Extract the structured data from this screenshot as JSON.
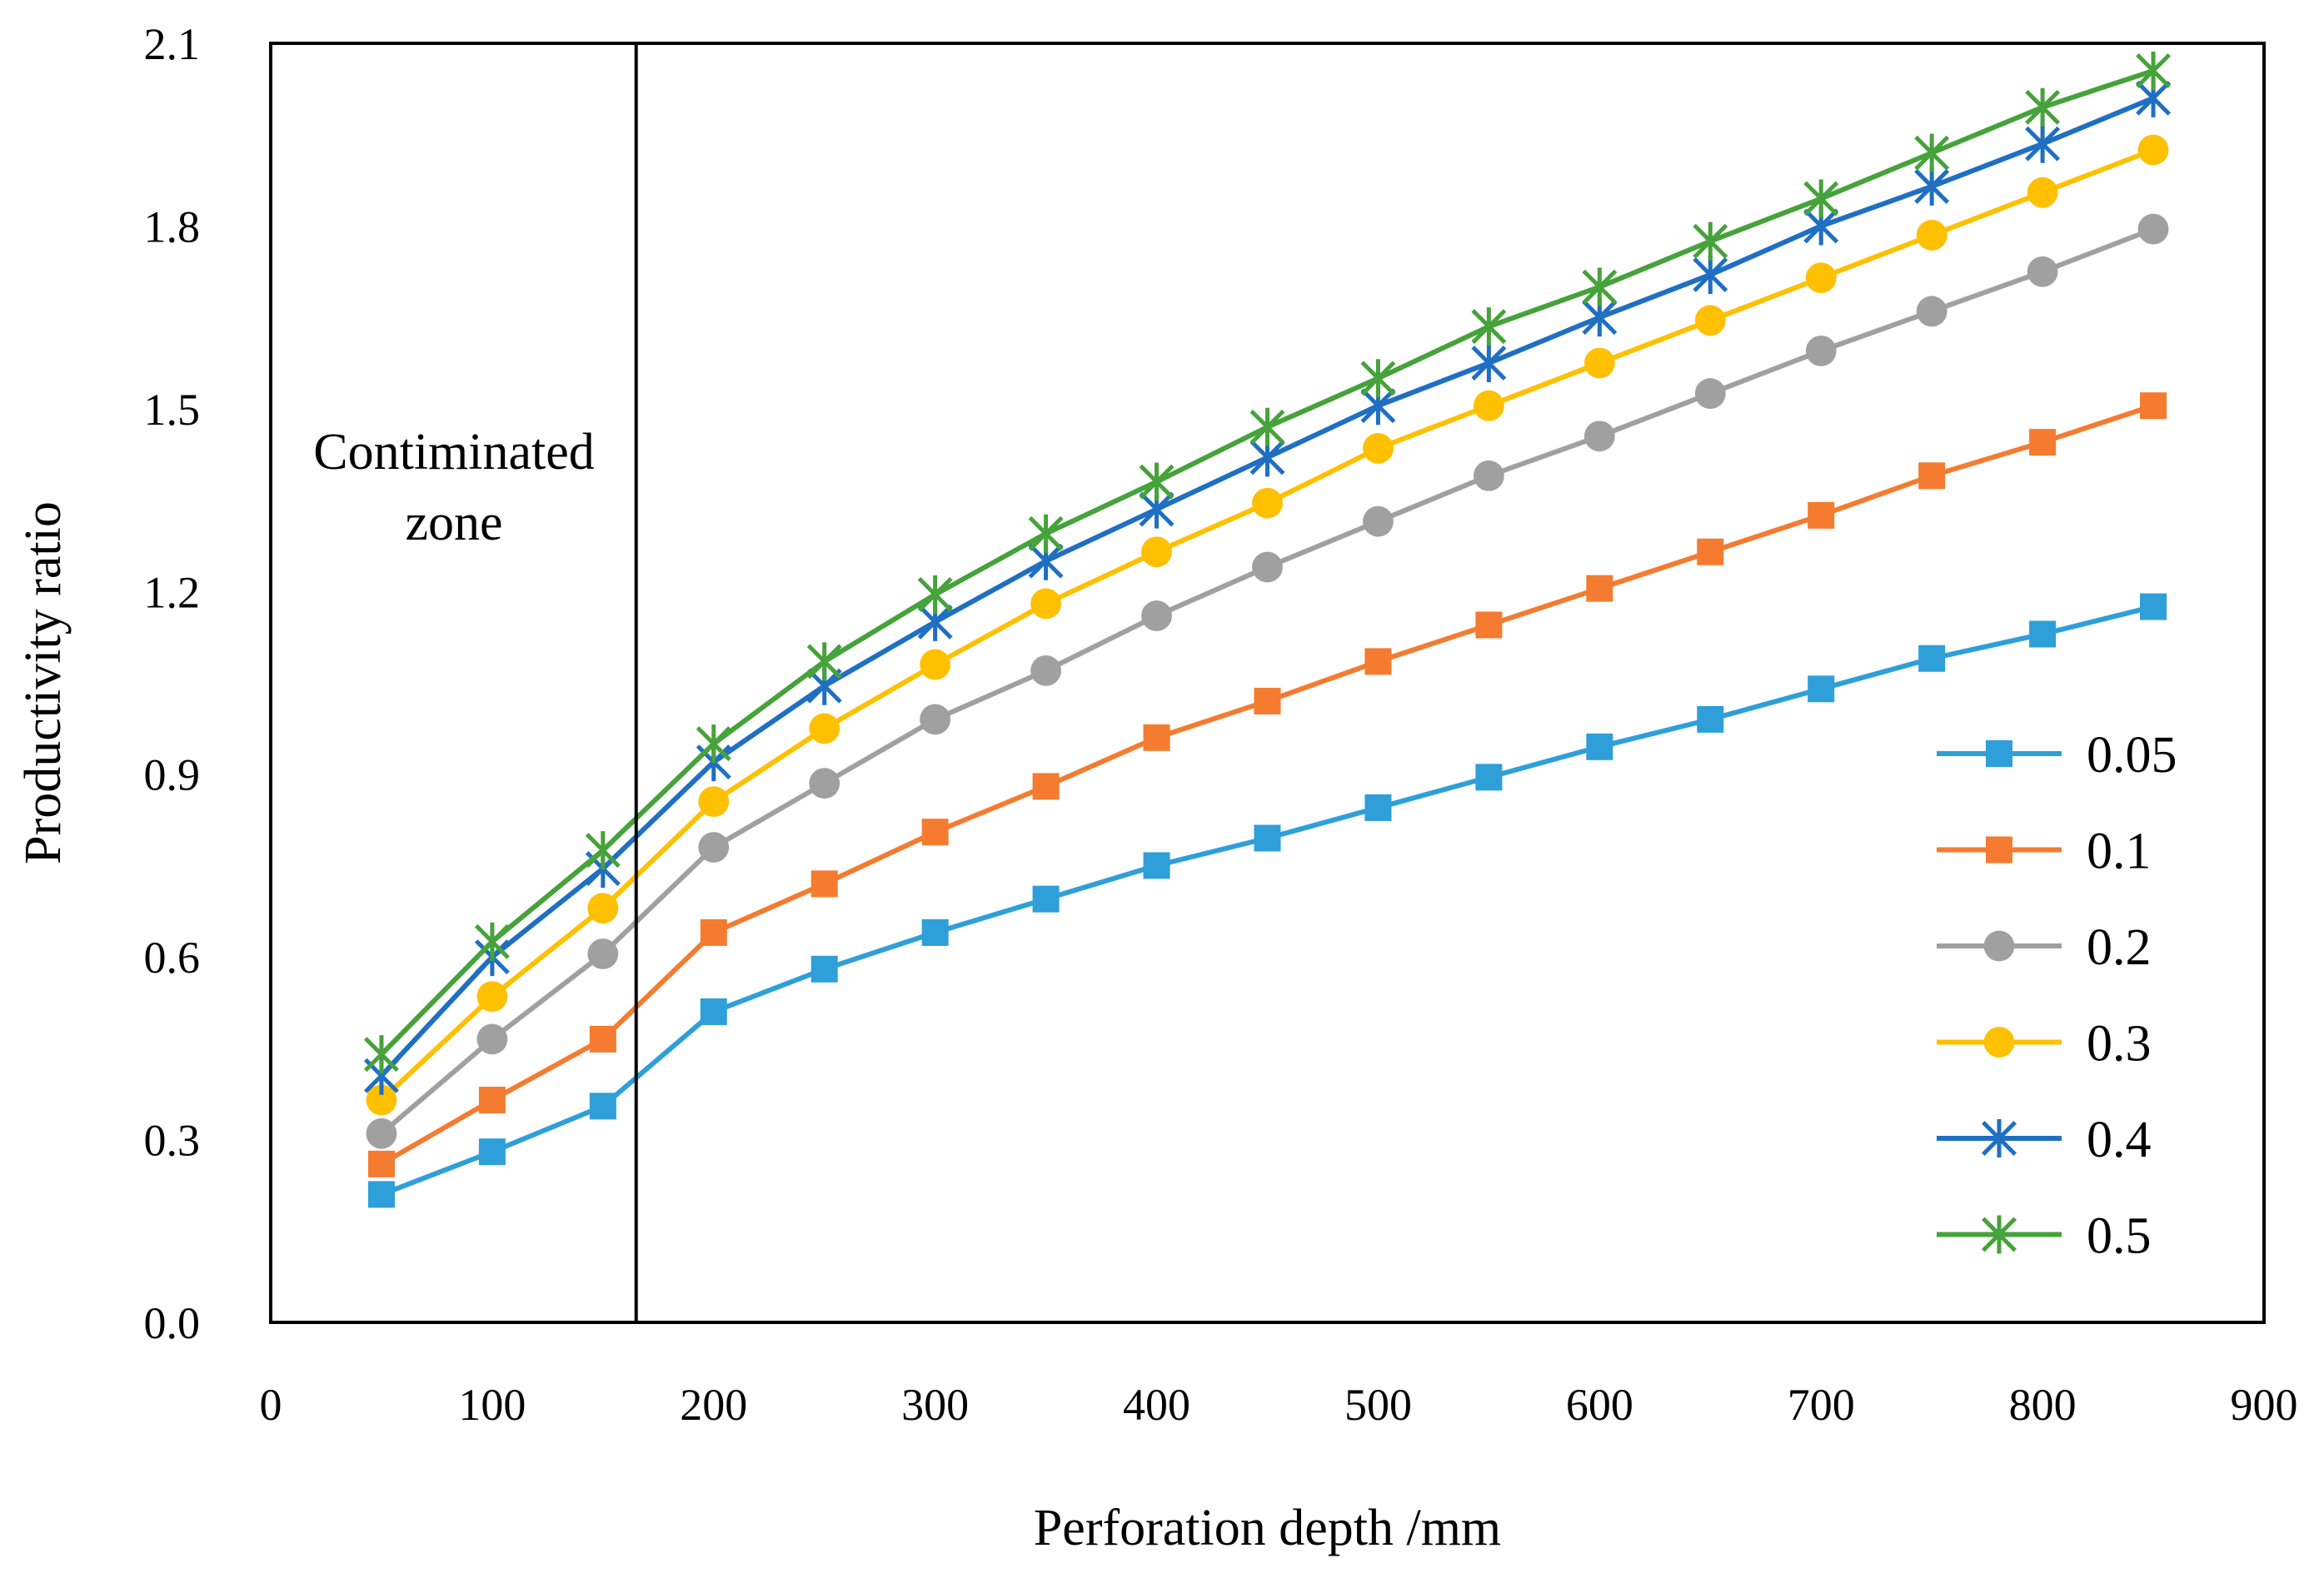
{
  "chart_data": {
    "type": "line",
    "title": "",
    "xlabel": "Perforation depth /mm",
    "ylabel": "Productivity ratio",
    "xlim": [
      0,
      900
    ],
    "ylim": [
      0,
      2.1
    ],
    "xticks": [
      "0",
      "100",
      "200",
      "300",
      "400",
      "500",
      "600",
      "700",
      "800",
      "900"
    ],
    "yticks": [
      "0.0",
      "0.3",
      "0.6",
      "0.9",
      "1.2",
      "1.5",
      "1.8",
      "2.1"
    ],
    "grid": false,
    "legend_position": "bottom-right",
    "x": [
      50,
      100,
      150,
      200,
      250,
      300,
      350,
      400,
      450,
      500,
      550,
      600,
      650,
      700,
      750,
      800,
      850
    ],
    "series": [
      {
        "name": "0.05",
        "color": "#2E9FD9",
        "marker": "square",
        "values": [
          0.21,
          0.28,
          0.355,
          0.51,
          0.58,
          0.64,
          0.695,
          0.75,
          0.795,
          0.845,
          0.895,
          0.945,
          0.99,
          1.04,
          1.09,
          1.13,
          1.175
        ]
      },
      {
        "name": "0.1",
        "color": "#F47B30",
        "marker": "square",
        "values": [
          0.26,
          0.365,
          0.465,
          0.64,
          0.72,
          0.805,
          0.88,
          0.96,
          1.02,
          1.085,
          1.145,
          1.205,
          1.265,
          1.325,
          1.39,
          1.445,
          1.505
        ]
      },
      {
        "name": "0.2",
        "color": "#A0A0A0",
        "marker": "circle",
        "values": [
          0.31,
          0.465,
          0.605,
          0.78,
          0.885,
          0.99,
          1.07,
          1.16,
          1.24,
          1.315,
          1.39,
          1.455,
          1.525,
          1.595,
          1.66,
          1.725,
          1.795
        ]
      },
      {
        "name": "0.3",
        "color": "#FFC000",
        "marker": "circle",
        "values": [
          0.365,
          0.535,
          0.68,
          0.855,
          0.975,
          1.08,
          1.18,
          1.265,
          1.345,
          1.435,
          1.505,
          1.575,
          1.645,
          1.715,
          1.785,
          1.855,
          1.925
        ]
      },
      {
        "name": "0.4",
        "color": "#1F6FC2",
        "marker": "asterisk",
        "values": [
          0.405,
          0.6,
          0.745,
          0.92,
          1.045,
          1.15,
          1.25,
          1.335,
          1.42,
          1.505,
          1.575,
          1.65,
          1.72,
          1.8,
          1.865,
          1.935,
          2.01
        ]
      },
      {
        "name": "0.5",
        "color": "#46A23A",
        "marker": "asterisk",
        "values": [
          0.44,
          0.625,
          0.775,
          0.95,
          1.085,
          1.195,
          1.295,
          1.38,
          1.47,
          1.55,
          1.635,
          1.7,
          1.775,
          1.845,
          1.92,
          1.995,
          2.055
        ]
      }
    ],
    "reference_line_x": 165,
    "annotation": {
      "line1": "Contiminated",
      "line2": "zone"
    }
  }
}
